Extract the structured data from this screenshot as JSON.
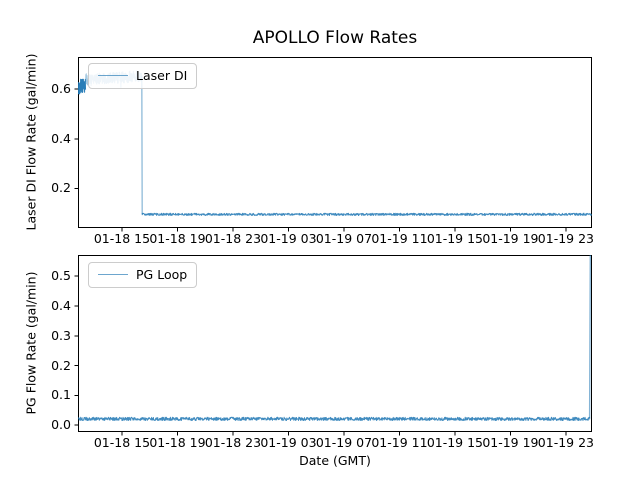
{
  "figure": {
    "title": "APOLLO Flow Rates",
    "xlabel": "Date (GMT)",
    "background": "#ffffff",
    "line_color": "#1f77b4",
    "legend_border_color": "#cccccc"
  },
  "chart_data": [
    {
      "type": "line",
      "name": "laser-di-subplot",
      "title": "",
      "ylabel": "Laser DI Flow Rate (gal/min)",
      "legend_position": "upper left",
      "grid": false,
      "x_tick_labels": [
        "01-18 15",
        "01-18 19",
        "01-18 23",
        "01-19 03",
        "01-19 07",
        "01-19 11",
        "01-19 15",
        "01-19 19",
        "01-19 23"
      ],
      "y_tick_labels": [
        "0.2",
        "0.4",
        "0.6"
      ],
      "y_tick_values": [
        0.2,
        0.4,
        0.6
      ],
      "ylim": [
        0.04,
        0.73
      ],
      "x_axis": {
        "first_tick_hour": 3.17,
        "tick_interval_hours": 4,
        "span_hours": 37.05
      },
      "series": [
        {
          "name": "Laser DI",
          "color": "#1f77b4",
          "segments": [
            {
              "t0": 0.0,
              "t1": 0.55,
              "v0": 0.605,
              "v1": 0.612,
              "noise": 0.033,
              "style": "dense"
            },
            {
              "t0": 0.55,
              "t1": 4.6,
              "v0": 0.64,
              "v1": 0.652,
              "noise": 0.023,
              "style": "band"
            },
            {
              "t0": 4.6,
              "t1": 4.63,
              "v0": 0.652,
              "v1": 0.095,
              "noise": 0.001,
              "style": "drop"
            },
            {
              "t0": 4.63,
              "t1": 37.05,
              "v0": 0.095,
              "v1": 0.095,
              "noise": 0.0045,
              "style": "line"
            }
          ]
        }
      ]
    },
    {
      "type": "line",
      "name": "pg-loop-subplot",
      "title": "",
      "ylabel": "PG Flow Rate (gal/min)",
      "legend_position": "upper left",
      "grid": false,
      "x_tick_labels": [
        "01-18 15",
        "01-18 19",
        "01-18 23",
        "01-19 03",
        "01-19 07",
        "01-19 11",
        "01-19 15",
        "01-19 19",
        "01-19 23"
      ],
      "y_tick_labels": [
        "0.0",
        "0.1",
        "0.2",
        "0.3",
        "0.4",
        "0.5"
      ],
      "y_tick_values": [
        0.0,
        0.1,
        0.2,
        0.3,
        0.4,
        0.5
      ],
      "ylim": [
        -0.023,
        0.571
      ],
      "x_axis": {
        "first_tick_hour": 3.17,
        "tick_interval_hours": 4,
        "span_hours": 37.05
      },
      "series": [
        {
          "name": "PG Loop",
          "color": "#1f77b4",
          "segments": [
            {
              "t0": 0.0,
              "t1": 36.88,
              "v0": 0.021,
              "v1": 0.021,
              "noise": 0.0055,
              "style": "line"
            },
            {
              "t0": 36.88,
              "t1": 36.93,
              "v0": 0.021,
              "v1": 0.571,
              "noise": 0.001,
              "style": "spike"
            }
          ]
        }
      ]
    }
  ]
}
